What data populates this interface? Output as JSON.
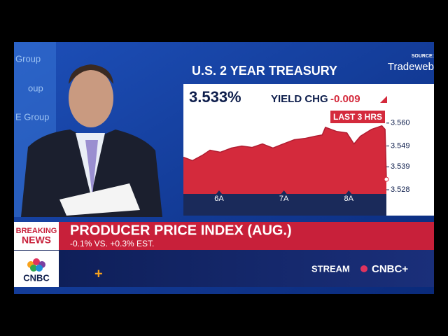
{
  "source_label": "SOURCE:",
  "source_name": "Tradeweb",
  "background_texts": [
    "Group",
    "oup",
    "E Group"
  ],
  "chart_data": {
    "type": "area",
    "title": "U.S. 2 YEAR TREASURY",
    "yield": "3.533%",
    "change_label": "YIELD CHG",
    "change": "-0.009",
    "range_label": "LAST 3 HRS",
    "color": "#d42a3c",
    "x": [
      5.45,
      5.59,
      5.75,
      5.86,
      6.02,
      6.19,
      6.35,
      6.51,
      6.67,
      6.83,
      6.99,
      7.16,
      7.32,
      7.48,
      7.59,
      7.64,
      7.81,
      7.97,
      8.08,
      8.18,
      8.35,
      8.51,
      8.56,
      8.58
    ],
    "values": [
      3.5436,
      3.542,
      3.5447,
      3.547,
      3.546,
      3.548,
      3.549,
      3.5483,
      3.55,
      3.548,
      3.55,
      3.552,
      3.5526,
      3.5537,
      3.5543,
      3.558,
      3.556,
      3.5553,
      3.55,
      3.5537,
      3.557,
      3.5587,
      3.557,
      3.533
    ],
    "xlim": [
      5.45,
      8.58
    ],
    "xticks": [
      {
        "value": 6,
        "label": "6A"
      },
      {
        "value": 7,
        "label": "7A"
      },
      {
        "value": 8,
        "label": "8A"
      }
    ],
    "ylim": [
      3.526,
      3.567
    ],
    "yticks": [
      {
        "value": 3.528,
        "label": "3.528"
      },
      {
        "value": 3.539,
        "label": "3.539"
      },
      {
        "value": 3.549,
        "label": "3.549"
      },
      {
        "value": 3.56,
        "label": "3.560"
      }
    ]
  },
  "lower_third": {
    "tag_line1": "BREAKING",
    "tag_line2": "NEWS",
    "headline": "PRODUCER PRICE INDEX (AUG.)",
    "subline": "-0.1% VS. +0.3% EST.",
    "network": "CNBC",
    "stream": "STREAM",
    "stream_brand": "CNBC+"
  }
}
